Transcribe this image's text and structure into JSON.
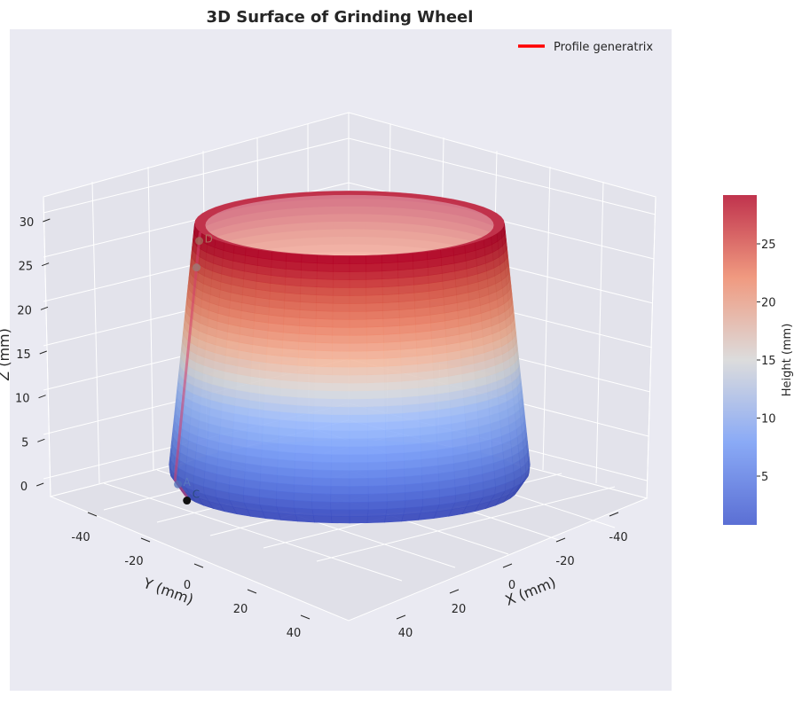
{
  "chart_data": {
    "type": "surface3d",
    "title": "3D Surface of Grinding Wheel",
    "xlabel": "X (mm)",
    "ylabel": "Y (mm)",
    "zlabel": "Z (mm)",
    "x_ticks": [
      -40,
      -20,
      0,
      20,
      40
    ],
    "y_ticks": [
      -40,
      -20,
      0,
      20,
      40
    ],
    "z_ticks": [
      0,
      5,
      10,
      15,
      20,
      25,
      30
    ],
    "z_range": [
      0,
      30
    ],
    "legend": {
      "label": "Profile generatrix",
      "color": "#ff0000",
      "placement": "upper-right"
    },
    "colorbar": {
      "label": "Height (mm)",
      "ticks": [
        5,
        10,
        15,
        20,
        25
      ],
      "range": [
        0.8,
        29.2
      ],
      "colormap": "coolwarm"
    },
    "profile_points": [
      {
        "label": "C",
        "z": 0
      },
      {
        "label": "A",
        "z": 1.5
      },
      {
        "label": "",
        "z": 26
      },
      {
        "label": "D",
        "z": 29
      }
    ],
    "grid": true
  }
}
